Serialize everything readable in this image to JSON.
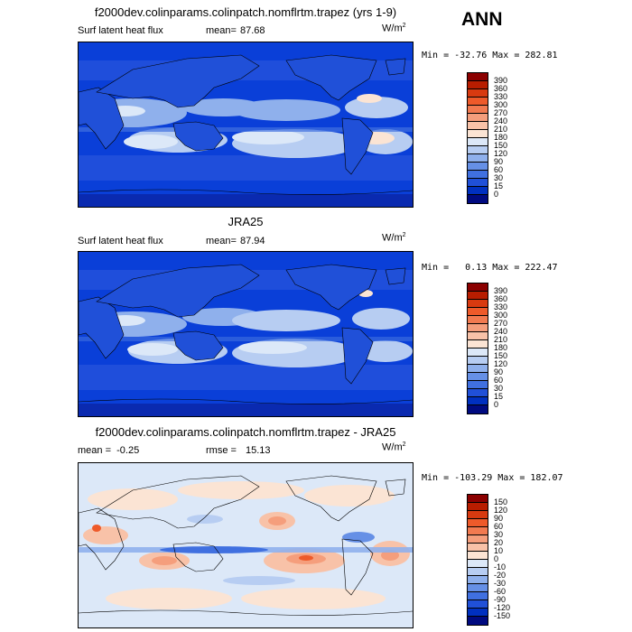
{
  "season": "ANN",
  "panels": [
    {
      "id": "model",
      "title": "f2000dev.colinparams.colinpatch.nomflrtm.trapez (yrs 1-9)",
      "left_label": "Surf latent heat flux",
      "stat_label": "mean=",
      "stat_value": "87.68",
      "units": "W/m",
      "units_sup": "2",
      "minmax": "Min = -32.76 Max = 282.81",
      "type": "absolute"
    },
    {
      "id": "obs",
      "title": "JRA25",
      "left_label": "Surf latent heat flux",
      "stat_label": "mean=",
      "stat_value": "87.94",
      "units": "W/m",
      "units_sup": "2",
      "minmax": "Min =   0.13 Max = 222.47",
      "type": "absolute"
    },
    {
      "id": "diff",
      "title": "f2000dev.colinparams.colinpatch.nomflrtm.trapez - JRA25",
      "left_label": "mean =  -0.25",
      "stat_label": "rmse =",
      "stat_value": "15.13",
      "units": "W/m",
      "units_sup": "2",
      "minmax": "Min = -103.29 Max = 182.07",
      "type": "difference"
    }
  ],
  "colorbars": {
    "absolute": {
      "levels": [
        "390",
        "360",
        "330",
        "300",
        "270",
        "240",
        "210",
        "180",
        "150",
        "120",
        "90",
        "60",
        "30",
        "15",
        "0"
      ],
      "colors": [
        "#8b0000",
        "#b81d00",
        "#d83a10",
        "#ee5a2a",
        "#f27a50",
        "#f59e7c",
        "#f8c2a8",
        "#fbe4d4",
        "#dce8f8",
        "#b7cdf2",
        "#8fb0ec",
        "#6690e6",
        "#4070e0",
        "#2050d8",
        "#0030c0",
        "#000a80"
      ]
    },
    "difference": {
      "levels": [
        "150",
        "120",
        "90",
        "60",
        "30",
        "20",
        "10",
        "0",
        "-10",
        "-20",
        "-30",
        "-60",
        "-90",
        "-120",
        "-150"
      ],
      "colors": [
        "#8b0000",
        "#b81d00",
        "#d83a10",
        "#ee5a2a",
        "#f27a50",
        "#f59e7c",
        "#f8c2a8",
        "#fbe4d4",
        "#dce8f8",
        "#b7cdf2",
        "#8fb0ec",
        "#6690e6",
        "#4070e0",
        "#2050d8",
        "#0030c0",
        "#000a80"
      ]
    }
  },
  "map_colors": {
    "ocean_base": "#0a3fd8",
    "land_base": "#2050d8",
    "diff_base": "#dce8f8"
  }
}
